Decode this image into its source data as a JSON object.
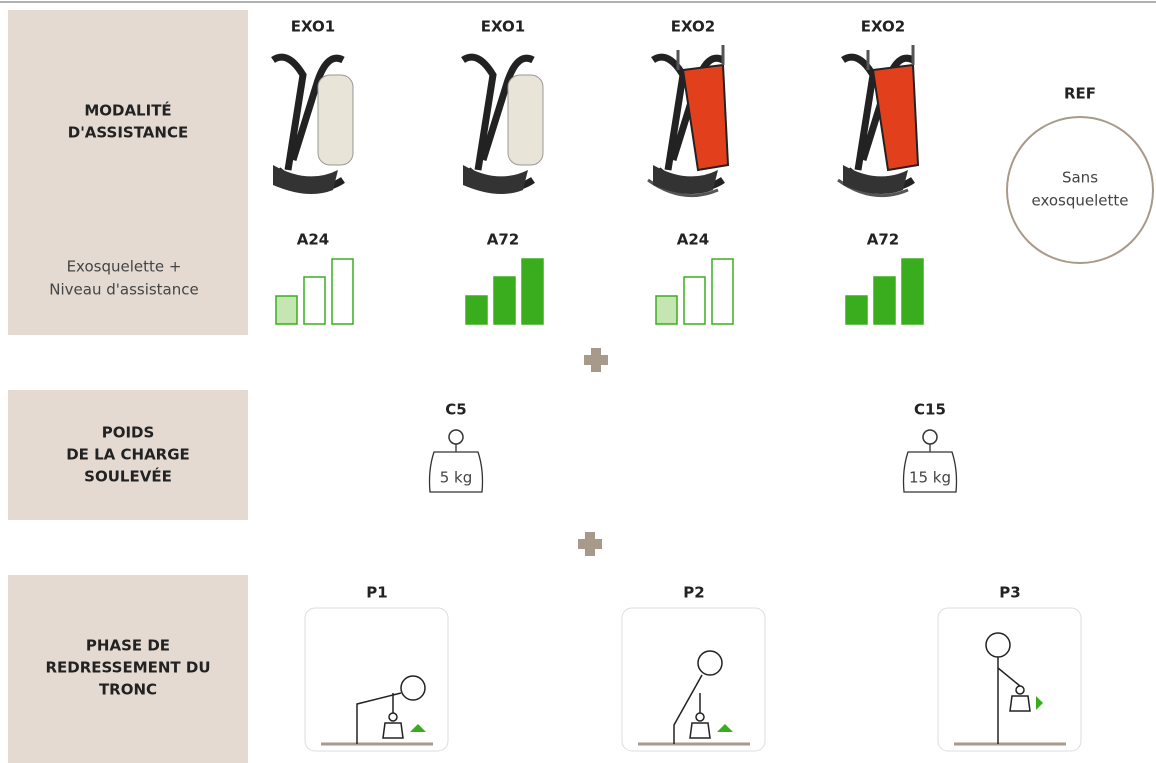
{
  "rows": [
    {
      "title": [
        "MODALITÉ",
        "D'ASSISTANCE"
      ],
      "subtitle": [
        "Exosquelette +",
        "Niveau d'assistance"
      ]
    },
    {
      "title": [
        "POIDS",
        "DE LA CHARGE",
        "SOULEVÉE"
      ]
    },
    {
      "title": [
        "PHASE DE",
        "REDRESSEMENT DU",
        "TRONC"
      ]
    }
  ],
  "exoskeletons": [
    {
      "name": "EXO1",
      "level": "A24"
    },
    {
      "name": "EXO1",
      "level": "A72"
    },
    {
      "name": "EXO2",
      "level": "A24"
    },
    {
      "name": "EXO2",
      "level": "A72"
    }
  ],
  "reference": {
    "label": "REF",
    "text": [
      "Sans",
      "exosquelette"
    ]
  },
  "loads": [
    {
      "code": "C5",
      "weight": "5 kg"
    },
    {
      "code": "C15",
      "weight": "15 kg"
    }
  ],
  "phases": [
    "P1",
    "P2",
    "P3"
  ]
}
